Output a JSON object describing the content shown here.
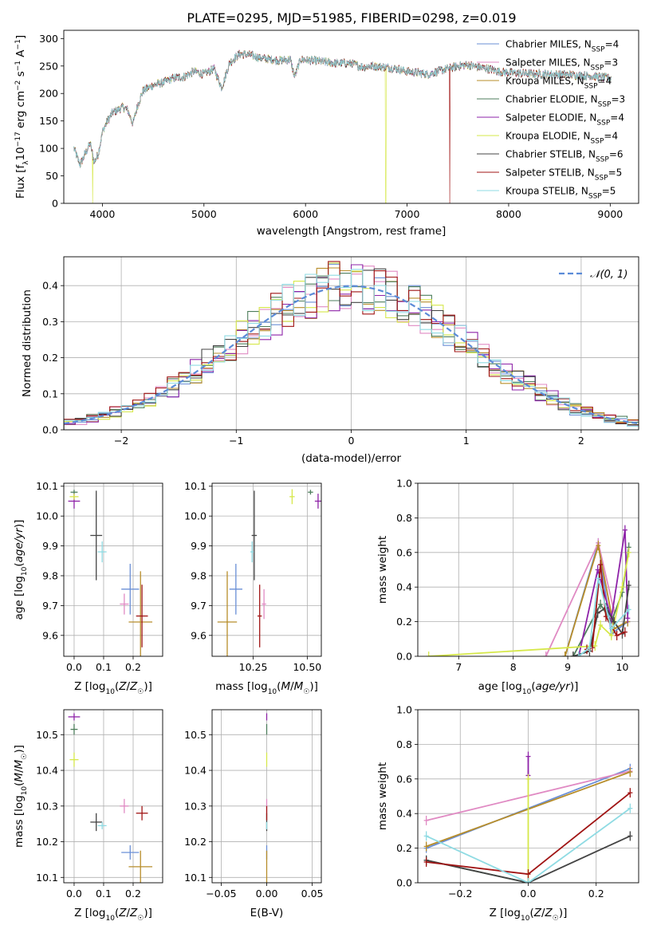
{
  "figure_title": "PLATE=0295, MJD=51985, FIBERID=0298, z=0.019",
  "models": [
    {
      "name": "Chabrier MILES",
      "nssp": "4",
      "color": "#6a8fd6"
    },
    {
      "name": "Salpeter MILES",
      "nssp": "3",
      "color": "#e08ac3"
    },
    {
      "name": "Kroupa MILES",
      "nssp": "4",
      "color": "#b78d2a"
    },
    {
      "name": "Chabrier ELODIE",
      "nssp": "3",
      "color": "#4e7e5c"
    },
    {
      "name": "Salpeter ELODIE",
      "nssp": "4",
      "color": "#8e23a8"
    },
    {
      "name": "Kroupa ELODIE",
      "nssp": "4",
      "color": "#d6e84a"
    },
    {
      "name": "Chabrier STELIB",
      "nssp": "6",
      "color": "#444444"
    },
    {
      "name": "Salpeter STELIB",
      "nssp": "5",
      "color": "#a01414"
    },
    {
      "name": "Kroupa STELIB",
      "nssp": "5",
      "color": "#8fdbe3"
    }
  ],
  "chart_data": [
    {
      "id": "spectrum",
      "type": "line",
      "xlabel": "wavelength [Angstrom, rest frame]",
      "ylabel": "Flux [f_λ 10^-17 erg cm^-2 s^-1 A^-1]",
      "xlim": [
        3620,
        9280
      ],
      "ylim": [
        0,
        315
      ],
      "xticks": [
        4000,
        5000,
        6000,
        7000,
        8000,
        9000
      ],
      "yticks": [
        0,
        50,
        100,
        150,
        200,
        250,
        300
      ],
      "continuum": [
        [
          3720,
          100
        ],
        [
          3780,
          70
        ],
        [
          3830,
          90
        ],
        [
          3880,
          110
        ],
        [
          3920,
          75
        ],
        [
          3960,
          90
        ],
        [
          4000,
          130
        ],
        [
          4050,
          150
        ],
        [
          4100,
          165
        ],
        [
          4150,
          170
        ],
        [
          4200,
          175
        ],
        [
          4250,
          170
        ],
        [
          4300,
          145
        ],
        [
          4350,
          180
        ],
        [
          4400,
          205
        ],
        [
          4500,
          215
        ],
        [
          4600,
          220
        ],
        [
          4700,
          228
        ],
        [
          4800,
          230
        ],
        [
          4900,
          240
        ],
        [
          5000,
          235
        ],
        [
          5100,
          245
        ],
        [
          5175,
          210
        ],
        [
          5250,
          255
        ],
        [
          5350,
          272
        ],
        [
          5450,
          270
        ],
        [
          5550,
          265
        ],
        [
          5650,
          262
        ],
        [
          5750,
          260
        ],
        [
          5850,
          262
        ],
        [
          5893,
          230
        ],
        [
          5950,
          262
        ],
        [
          6050,
          260
        ],
        [
          6150,
          258
        ],
        [
          6300,
          255
        ],
        [
          6450,
          255
        ],
        [
          6563,
          248
        ],
        [
          6650,
          250
        ],
        [
          6800,
          248
        ],
        [
          6900,
          245
        ],
        [
          7000,
          240
        ],
        [
          7100,
          238
        ],
        [
          7200,
          235
        ],
        [
          7300,
          240
        ],
        [
          7400,
          245
        ],
        [
          7500,
          250
        ],
        [
          7600,
          252
        ],
        [
          7700,
          248
        ],
        [
          7800,
          245
        ],
        [
          7900,
          240
        ],
        [
          8000,
          238
        ],
        [
          8200,
          236
        ],
        [
          8400,
          235
        ],
        [
          8600,
          234
        ],
        [
          8800,
          232
        ],
        [
          9000,
          228
        ]
      ],
      "model_dropouts": [
        {
          "model": "Kroupa ELODIE",
          "wavelength": 3905
        },
        {
          "model": "Kroupa ELODIE",
          "wavelength": 6790
        },
        {
          "model": "Salpeter STELIB",
          "wavelength": 7420
        }
      ]
    },
    {
      "id": "residuals",
      "type": "histogram",
      "xlabel": "(data-model)/error",
      "ylabel": "Normed distribution",
      "xlim": [
        -2.5,
        2.5
      ],
      "ylim": [
        0,
        0.48
      ],
      "xticks": [
        -2,
        -1,
        0,
        1,
        2
      ],
      "yticks": [
        0.0,
        0.1,
        0.2,
        0.3,
        0.4
      ],
      "bin_width": 0.1,
      "reference_curve": "𝒩(0, 1)",
      "reference_color": "#5b8bd8"
    },
    {
      "id": "age-vs-metallicity",
      "type": "errorbar",
      "xlabel": "Z [log10(Z/Z☉)]",
      "ylabel": "age  [log10(age/yr)]",
      "xlim": [
        -0.035,
        0.3
      ],
      "ylim": [
        9.53,
        10.11
      ],
      "xticks": [
        0.0,
        0.1,
        0.2
      ],
      "yticks": [
        9.6,
        9.7,
        9.8,
        9.9,
        10.0,
        10.1
      ],
      "points": [
        {
          "model": "Chabrier MILES",
          "x": 0.19,
          "y": 9.755,
          "xerr": 0.03,
          "yerr": 0.085
        },
        {
          "model": "Salpeter MILES",
          "x": 0.17,
          "y": 9.705,
          "xerr": 0.015,
          "yerr": 0.035
        },
        {
          "model": "Kroupa MILES",
          "x": 0.225,
          "y": 9.645,
          "xerr": 0.04,
          "yerr": 0.17
        },
        {
          "model": "Chabrier ELODIE",
          "x": 0.0,
          "y": 10.08,
          "xerr": 0.012,
          "yerr": 0.008
        },
        {
          "model": "Salpeter ELODIE",
          "x": 0.0,
          "y": 10.05,
          "xerr": 0.02,
          "yerr": 0.025
        },
        {
          "model": "Kroupa ELODIE",
          "x": 0.0,
          "y": 10.065,
          "xerr": 0.015,
          "yerr": 0.01
        },
        {
          "model": "Chabrier STELIB",
          "x": 0.075,
          "y": 9.935,
          "xerr": 0.02,
          "yerr": 0.15
        },
        {
          "model": "Salpeter STELIB",
          "x": 0.23,
          "y": 9.665,
          "xerr": 0.02,
          "yerr": 0.105
        },
        {
          "model": "Kroupa STELIB",
          "x": 0.095,
          "y": 9.88,
          "xerr": 0.015,
          "yerr": 0.035
        }
      ]
    },
    {
      "id": "age-vs-mass",
      "type": "errorbar",
      "xlabel": "mass [log10(M/M☉)]",
      "ylabel": "",
      "xlim": [
        10.06,
        10.565
      ],
      "ylim": [
        9.53,
        10.11
      ],
      "xticks": [
        10.25,
        10.5
      ],
      "yticks": [
        9.6,
        9.7,
        9.8,
        9.9,
        10.0,
        10.1
      ],
      "points": [
        {
          "model": "Chabrier MILES",
          "x": 10.17,
          "y": 9.755,
          "xerr": 0.03,
          "yerr": 0.085
        },
        {
          "model": "Salpeter MILES",
          "x": 10.3,
          "y": 9.705,
          "xerr": 0.01,
          "yerr": 0.05
        },
        {
          "model": "Kroupa MILES",
          "x": 10.13,
          "y": 9.645,
          "xerr": 0.045,
          "yerr": 0.17
        },
        {
          "model": "Chabrier ELODIE",
          "x": 10.515,
          "y": 10.08,
          "xerr": 0.012,
          "yerr": 0.008
        },
        {
          "model": "Salpeter ELODIE",
          "x": 10.55,
          "y": 10.05,
          "xerr": 0.015,
          "yerr": 0.025
        },
        {
          "model": "Kroupa ELODIE",
          "x": 10.43,
          "y": 10.065,
          "xerr": 0.012,
          "yerr": 0.025
        },
        {
          "model": "Chabrier STELIB",
          "x": 10.255,
          "y": 9.935,
          "xerr": 0.012,
          "yerr": 0.15
        },
        {
          "model": "Salpeter STELIB",
          "x": 10.28,
          "y": 9.665,
          "xerr": 0.01,
          "yerr": 0.105
        },
        {
          "model": "Kroupa STELIB",
          "x": 10.245,
          "y": 9.88,
          "xerr": 0.008,
          "yerr": 0.035
        }
      ]
    },
    {
      "id": "mass-weight-vs-age",
      "type": "line",
      "xlabel": "age  [log10(age/yr)]",
      "ylabel": "mass weight",
      "xlim": [
        6.25,
        10.3
      ],
      "ylim": [
        0,
        1
      ],
      "xticks": [
        7,
        8,
        9,
        10
      ],
      "yticks": [
        0.0,
        0.2,
        0.4,
        0.6,
        0.8,
        1.0
      ],
      "series": [
        {
          "model": "Chabrier MILES",
          "x": [
            8.95,
            9.56,
            9.8,
            10.1
          ],
          "y": [
            0.0,
            0.655,
            0.13,
            0.2
          ]
        },
        {
          "model": "Salpeter MILES",
          "x": [
            8.6,
            9.56,
            9.85
          ],
          "y": [
            0.0,
            0.655,
            0.26
          ]
        },
        {
          "model": "Kroupa MILES",
          "x": [
            8.95,
            9.56,
            9.85,
            10.1
          ],
          "y": [
            0.0,
            0.64,
            0.16,
            0.2
          ]
        },
        {
          "model": "Chabrier ELODIE",
          "x": [
            9.1,
            9.6,
            9.8,
            10.0,
            10.12
          ],
          "y": [
            0.0,
            0.3,
            0.2,
            0.37,
            0.63
          ]
        },
        {
          "model": "Salpeter ELODIE",
          "x": [
            9.2,
            9.55,
            9.8,
            10.05,
            10.1
          ],
          "y": [
            0.0,
            0.5,
            0.22,
            0.73,
            0.22
          ]
        },
        {
          "model": "Kroupa ELODIE",
          "x": [
            6.45,
            9.5,
            9.6,
            9.8,
            10.0,
            10.12
          ],
          "y": [
            0.0,
            0.06,
            0.18,
            0.12,
            0.4,
            0.6
          ]
        },
        {
          "model": "Chabrier STELIB",
          "x": [
            9.1,
            9.4,
            9.55,
            9.7,
            9.85,
            10.0,
            10.12
          ],
          "y": [
            0.0,
            0.03,
            0.25,
            0.28,
            0.2,
            0.13,
            0.41
          ]
        },
        {
          "model": "Salpeter STELIB",
          "x": [
            9.35,
            9.45,
            9.6,
            9.7,
            9.9,
            10.05
          ],
          "y": [
            0.04,
            0.05,
            0.53,
            0.23,
            0.12,
            0.14
          ]
        },
        {
          "model": "Kroupa STELIB",
          "x": [
            9.2,
            9.4,
            9.56,
            9.8,
            10.12
          ],
          "y": [
            0.0,
            0.05,
            0.45,
            0.16,
            0.27
          ]
        }
      ]
    },
    {
      "id": "mass-vs-metallicity",
      "type": "errorbar",
      "xlabel": "Z [log10(Z/Z☉)]",
      "ylabel": "mass [log10(M/M☉)]",
      "xlim": [
        -0.035,
        0.3
      ],
      "ylim": [
        10.085,
        10.57
      ],
      "xticks": [
        0.0,
        0.1,
        0.2
      ],
      "yticks": [
        10.1,
        10.2,
        10.3,
        10.4,
        10.5
      ],
      "points": [
        {
          "model": "Chabrier MILES",
          "x": 0.19,
          "y": 10.17,
          "xerr": 0.03,
          "yerr": 0.02
        },
        {
          "model": "Salpeter MILES",
          "x": 0.17,
          "y": 10.3,
          "xerr": 0.015,
          "yerr": 0.02
        },
        {
          "model": "Kroupa MILES",
          "x": 0.225,
          "y": 10.13,
          "xerr": 0.04,
          "yerr": 0.045
        },
        {
          "model": "Chabrier ELODIE",
          "x": 0.0,
          "y": 10.515,
          "xerr": 0.012,
          "yerr": 0.015
        },
        {
          "model": "Salpeter ELODIE",
          "x": 0.0,
          "y": 10.55,
          "xerr": 0.02,
          "yerr": 0.01
        },
        {
          "model": "Kroupa ELODIE",
          "x": 0.0,
          "y": 10.43,
          "xerr": 0.015,
          "yerr": 0.02
        },
        {
          "model": "Chabrier STELIB",
          "x": 0.075,
          "y": 10.255,
          "xerr": 0.02,
          "yerr": 0.025
        },
        {
          "model": "Salpeter STELIB",
          "x": 0.23,
          "y": 10.28,
          "xerr": 0.02,
          "yerr": 0.02
        },
        {
          "model": "Kroupa STELIB",
          "x": 0.095,
          "y": 10.245,
          "xerr": 0.015,
          "yerr": 0.01
        }
      ]
    },
    {
      "id": "mass-vs-extinction",
      "type": "errorbar",
      "xlabel": "E(B-V)",
      "ylabel": "",
      "xlim": [
        -0.06,
        0.06
      ],
      "ylim": [
        10.085,
        10.57
      ],
      "xticks": [
        -0.05,
        0.0,
        0.05
      ],
      "xticklabels": [
        "−0.05",
        "0.00",
        "0.05"
      ],
      "yticks": [
        10.1,
        10.2,
        10.3,
        10.4,
        10.5
      ],
      "points": [
        {
          "model": "Chabrier MILES",
          "x": 0.0,
          "y": 10.17,
          "xerr": 0.0,
          "yerr": 0.02
        },
        {
          "model": "Salpeter MILES",
          "x": 0.0,
          "y": 10.3,
          "xerr": 0.0,
          "yerr": 0.02
        },
        {
          "model": "Kroupa MILES",
          "x": 0.0,
          "y": 10.13,
          "xerr": 0.0,
          "yerr": 0.045
        },
        {
          "model": "Chabrier ELODIE",
          "x": 0.0,
          "y": 10.515,
          "xerr": 0.0,
          "yerr": 0.015
        },
        {
          "model": "Salpeter ELODIE",
          "x": 0.0,
          "y": 10.55,
          "xerr": 0.0,
          "yerr": 0.01
        },
        {
          "model": "Kroupa ELODIE",
          "x": 0.0,
          "y": 10.43,
          "xerr": 0.0,
          "yerr": 0.02
        },
        {
          "model": "Chabrier STELIB",
          "x": 0.0,
          "y": 10.255,
          "xerr": 0.0,
          "yerr": 0.025
        },
        {
          "model": "Salpeter STELIB",
          "x": 0.0,
          "y": 10.28,
          "xerr": 0.0,
          "yerr": 0.02
        },
        {
          "model": "Kroupa STELIB",
          "x": 0.0,
          "y": 10.245,
          "xerr": 0.0,
          "yerr": 0.01
        }
      ]
    },
    {
      "id": "mass-weight-vs-metallicity",
      "type": "line",
      "xlabel": "Z [log10(Z/Z☉)]",
      "ylabel": "mass weight",
      "xlim": [
        -0.325,
        0.325
      ],
      "ylim": [
        0,
        1
      ],
      "xticks": [
        -0.2,
        0.0,
        0.2
      ],
      "xticklabels": [
        "−0.2",
        "0.0",
        "0.2"
      ],
      "yticks": [
        0.0,
        0.2,
        0.4,
        0.6,
        0.8,
        1.0
      ],
      "series": [
        {
          "model": "Chabrier MILES",
          "x": [
            -0.3,
            0.3
          ],
          "y": [
            0.2,
            0.66
          ]
        },
        {
          "model": "Salpeter MILES",
          "x": [
            -0.3,
            0.3
          ],
          "y": [
            0.36,
            0.645
          ]
        },
        {
          "model": "Kroupa MILES",
          "x": [
            -0.3,
            0.3
          ],
          "y": [
            0.21,
            0.64
          ]
        },
        {
          "model": "Chabrier ELODIE",
          "x": [
            -0.3,
            0.0
          ],
          "y": [
            0.13,
            0.0
          ]
        },
        {
          "model": "Salpeter ELODIE",
          "x": [
            0.0,
            0.0
          ],
          "y": [
            0.62,
            0.73
          ]
        },
        {
          "model": "Kroupa ELODIE",
          "x": [
            0.0,
            0.0
          ],
          "y": [
            0.0,
            0.6
          ]
        },
        {
          "model": "Chabrier STELIB",
          "x": [
            -0.3,
            0.0,
            0.3
          ],
          "y": [
            0.13,
            0.0,
            0.27
          ]
        },
        {
          "model": "Salpeter STELIB",
          "x": [
            -0.3,
            0.0,
            0.3
          ],
          "y": [
            0.12,
            0.05,
            0.52
          ]
        },
        {
          "model": "Kroupa STELIB",
          "x": [
            -0.3,
            0.0,
            0.3
          ],
          "y": [
            0.27,
            0.0,
            0.43
          ]
        }
      ]
    }
  ]
}
